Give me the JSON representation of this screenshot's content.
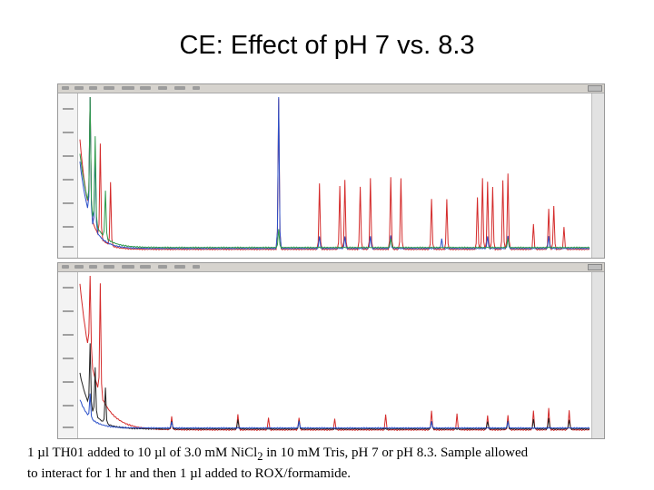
{
  "slide": {
    "title": "CE: Effect of pH 7 vs. 8.3",
    "caption_line1": "1 µl TH01 added to 10 µl of 3.0 mM NiCl",
    "caption_sub": "2",
    "caption_line1_rest": " in 10 mM Tris, pH 7 or pH 8.3.  Sample allowed",
    "caption_line2": "to interact for 1 hr and then 1 µl added to ROX/formamide."
  },
  "colors": {
    "red_trace": "#d42a2a",
    "green_trace": "#2e9a4a",
    "blue_trace": "#2a4fc8",
    "black_trace": "#222222",
    "panel_bg": "#ffffff"
  },
  "chart_data": [
    {
      "type": "line",
      "panel": "top",
      "xlim": [
        0,
        100
      ],
      "ylim": [
        0,
        100
      ],
      "grid": false,
      "baseline": 3,
      "series": [
        {
          "color": "red",
          "decay": {
            "start": 70,
            "rate": 0.55
          },
          "peaks": [
            [
              2,
              95
            ],
            [
              4,
              60
            ],
            [
              6,
              40
            ],
            [
              39,
              96
            ],
            [
              47,
              42
            ],
            [
              51,
              40
            ],
            [
              52,
              44
            ],
            [
              55,
              40
            ],
            [
              57,
              45
            ],
            [
              61,
              46
            ],
            [
              63,
              45
            ],
            [
              69,
              32
            ],
            [
              72,
              32
            ],
            [
              78,
              33
            ],
            [
              79,
              45
            ],
            [
              80,
              43
            ],
            [
              81,
              40
            ],
            [
              83,
              44
            ],
            [
              84,
              48
            ],
            [
              89,
              16
            ],
            [
              92,
              26
            ],
            [
              93,
              28
            ],
            [
              95,
              14
            ]
          ]
        },
        {
          "color": "blue",
          "decay": {
            "start": 55,
            "rate": 0.5
          },
          "peaks": [
            [
              2,
              85
            ],
            [
              3,
              50
            ],
            [
              39,
              98
            ],
            [
              47,
              8
            ],
            [
              52,
              8
            ],
            [
              57,
              8
            ],
            [
              61,
              8
            ],
            [
              71,
              6
            ],
            [
              80,
              8
            ],
            [
              84,
              8
            ],
            [
              92,
              8
            ]
          ]
        },
        {
          "color": "green",
          "decay": {
            "start": 60,
            "rate": 0.45
          },
          "peaks": [
            [
              2,
              80
            ],
            [
              3,
              55
            ],
            [
              5,
              30
            ],
            [
              39,
              12
            ],
            [
              61,
              6
            ],
            [
              84,
              6
            ]
          ]
        }
      ]
    },
    {
      "type": "line",
      "panel": "bottom",
      "xlim": [
        0,
        100
      ],
      "ylim": [
        0,
        100
      ],
      "grid": false,
      "baseline": 3,
      "series": [
        {
          "color": "red",
          "decay": {
            "start": 92,
            "rate": 0.35
          },
          "peaks": [
            [
              2,
              99
            ],
            [
              4,
              70
            ],
            [
              18,
              8
            ],
            [
              31,
              10
            ],
            [
              37,
              8
            ],
            [
              43,
              8
            ],
            [
              50,
              7
            ],
            [
              60,
              10
            ],
            [
              69,
              12
            ],
            [
              74,
              10
            ],
            [
              80,
              9
            ],
            [
              84,
              9
            ],
            [
              89,
              12
            ],
            [
              92,
              14
            ],
            [
              96,
              12
            ]
          ]
        },
        {
          "color": "black",
          "decay": {
            "start": 35,
            "rate": 0.45
          },
          "peaks": [
            [
              2,
              40
            ],
            [
              3,
              30
            ],
            [
              5,
              22
            ],
            [
              18,
              5
            ],
            [
              31,
              6
            ],
            [
              43,
              5
            ],
            [
              69,
              5
            ],
            [
              80,
              5
            ],
            [
              84,
              5
            ],
            [
              89,
              6
            ],
            [
              92,
              7
            ],
            [
              96,
              6
            ]
          ]
        },
        {
          "color": "blue",
          "decay": {
            "start": 18,
            "rate": 0.5
          },
          "peaks": [
            [
              2,
              15
            ],
            [
              18,
              4
            ],
            [
              43,
              4
            ],
            [
              69,
              4
            ],
            [
              84,
              4
            ]
          ]
        }
      ]
    }
  ]
}
